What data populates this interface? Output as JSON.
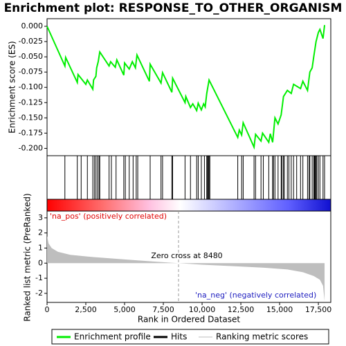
{
  "chart_data": [
    {
      "type": "line",
      "title": "Enrichment plot: RESPONSE_TO_OTHER_ORGANISM",
      "ylabel": "Enrichment score (ES)",
      "x": [
        0,
        1150,
        1200,
        1950,
        2000,
        2500,
        2600,
        2950,
        3000,
        3150,
        3200,
        3300,
        3400,
        4000,
        4100,
        4400,
        4500,
        4950,
        5000,
        5300,
        5500,
        5700,
        5800,
        6600,
        6650,
        7350,
        7450,
        8050,
        8100,
        8900,
        8950,
        9250,
        9400,
        9650,
        9750,
        9950,
        10100,
        10200,
        10300,
        10450,
        12300,
        12400,
        12550,
        12650,
        13350,
        13450,
        13800,
        13900,
        14300,
        14400,
        14550,
        14700,
        14900,
        15100,
        15250,
        15500,
        15750,
        15900,
        16350,
        16500,
        16800,
        16950,
        17100,
        17200,
        17350,
        17500,
        17600,
        17800,
        17900
      ],
      "series": [
        {
          "name": "Enrichment profile",
          "color": "#00ee00",
          "values": [
            0,
            -0.065,
            -0.051,
            -0.092,
            -0.079,
            -0.095,
            -0.088,
            -0.103,
            -0.088,
            -0.082,
            -0.068,
            -0.058,
            -0.042,
            -0.065,
            -0.058,
            -0.067,
            -0.055,
            -0.08,
            -0.06,
            -0.07,
            -0.058,
            -0.068,
            -0.047,
            -0.09,
            -0.062,
            -0.093,
            -0.076,
            -0.108,
            -0.085,
            -0.125,
            -0.115,
            -0.133,
            -0.127,
            -0.138,
            -0.126,
            -0.137,
            -0.127,
            -0.132,
            -0.11,
            -0.088,
            -0.182,
            -0.17,
            -0.178,
            -0.158,
            -0.198,
            -0.177,
            -0.188,
            -0.175,
            -0.19,
            -0.176,
            -0.19,
            -0.15,
            -0.16,
            -0.145,
            -0.115,
            -0.105,
            -0.11,
            -0.095,
            -0.102,
            -0.09,
            -0.105,
            -0.075,
            -0.068,
            -0.05,
            -0.025,
            -0.01,
            -0.005,
            -0.02,
            0.002
          ]
        }
      ],
      "xlim": [
        0,
        18300
      ],
      "ylim": [
        -0.212,
        0.0125
      ],
      "yticks": [
        {
          "value": 0,
          "label": "0.000"
        },
        {
          "value": -0.025,
          "label": "-0.025"
        },
        {
          "value": -0.05,
          "label": "-0.050"
        },
        {
          "value": -0.075,
          "label": "-0.075"
        },
        {
          "value": -0.1,
          "label": "-0.100"
        },
        {
          "value": -0.125,
          "label": "-0.125"
        },
        {
          "value": -0.15,
          "label": "-0.150"
        },
        {
          "value": -0.175,
          "label": "-0.175"
        },
        {
          "value": -0.2,
          "label": "-0.200"
        }
      ]
    },
    {
      "type": "rug",
      "series": [
        {
          "name": "Hits",
          "color": "#000000",
          "x": [
            1150,
            1950,
            2200,
            2600,
            2950,
            3050,
            3150,
            3250,
            3350,
            3400,
            4000,
            4150,
            4450,
            4950,
            5050,
            5300,
            5550,
            5750,
            5850,
            6650,
            7350,
            7450,
            8050,
            8100,
            8900,
            9250,
            9650,
            9750,
            9950,
            10150,
            10300,
            10350,
            10400,
            10450,
            10500,
            12300,
            12550,
            12650,
            13350,
            13450,
            13800,
            13950,
            14300,
            14550,
            14600,
            14700,
            14900,
            15100,
            15150,
            15250,
            15300,
            15500,
            15600,
            15750,
            15900,
            16100,
            16350,
            16500,
            16800,
            16900,
            16950,
            17100,
            17200,
            17250,
            17300,
            17350,
            17400,
            17500,
            17600,
            17800,
            17900
          ]
        }
      ],
      "xlim": [
        0,
        18300
      ]
    },
    {
      "type": "area",
      "xlabel": "Rank in Ordered Dataset",
      "ylabel": "Ranked list metric (PreRanked)",
      "x": [
        0,
        100,
        300,
        700,
        1500,
        3000,
        5000,
        7000,
        8480,
        10000,
        12000,
        14000,
        15500,
        16500,
        17200,
        17600,
        17800,
        17900
      ],
      "series": [
        {
          "name": "Ranking metric scores",
          "color": "#bebebe",
          "values": [
            1.8,
            1.3,
            1.0,
            0.75,
            0.55,
            0.4,
            0.25,
            0.1,
            0,
            -0.1,
            -0.2,
            -0.3,
            -0.42,
            -0.6,
            -0.85,
            -1.1,
            -1.5,
            -2.5
          ]
        }
      ],
      "xlim": [
        0,
        18300
      ],
      "ylim": [
        -2.6,
        3.45
      ],
      "yticks": [
        3,
        2,
        1,
        0,
        -1,
        -2
      ],
      "xticks": [
        0,
        {
          "value": 2500,
          "label": "2,500"
        },
        {
          "value": 5000,
          "label": "5,000"
        },
        {
          "value": 7500,
          "label": "7,500"
        },
        {
          "value": 10000,
          "label": "10,000"
        },
        {
          "value": 12500,
          "label": "12,500"
        },
        {
          "value": 15000,
          "label": "15,000"
        },
        {
          "value": 17500,
          "label": "17,500"
        }
      ],
      "zero_cross": 8480,
      "annotations": [
        "'na_pos' (positively correlated)",
        "Zero cross at 8480",
        "'na_neg' (negatively correlated)"
      ]
    }
  ]
}
